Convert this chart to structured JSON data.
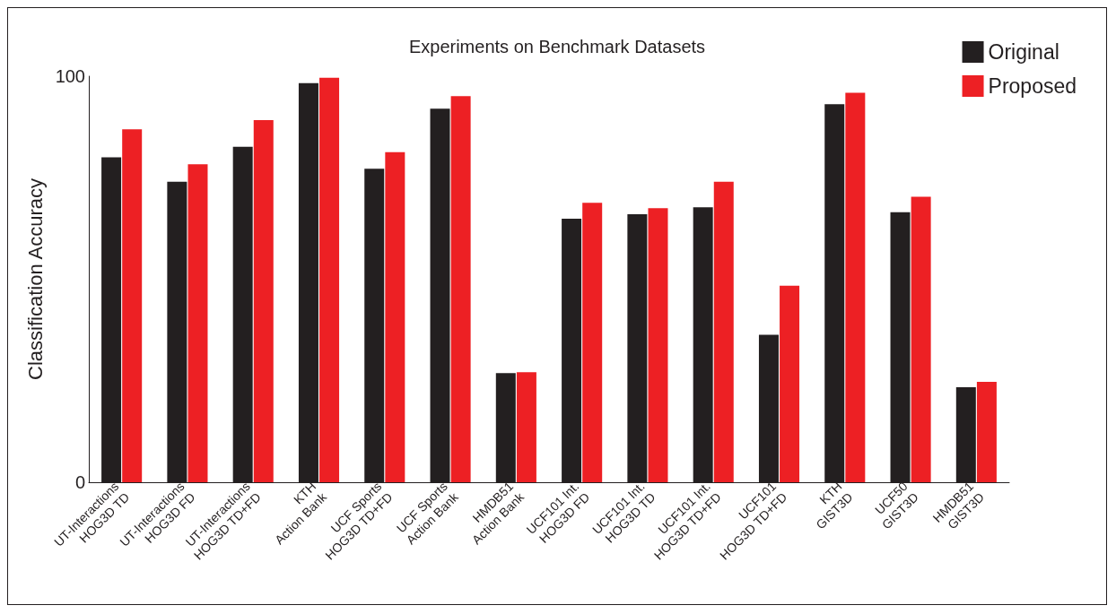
{
  "chart_data": {
    "type": "bar",
    "title": "Experiments on Benchmark Datasets",
    "ylabel": "Classification Accuracy",
    "categories": [
      "UT-Interactions\nHOG3D TD",
      "UT-Interactions\nHOG3D FD",
      "UT-Interactions\nHOG3D TD+FD",
      "KTH\nAction Bank",
      "UCF Sports\nHOG3D TD+FD",
      "UCF Sports\nAction Bank",
      "HMDB51\nAction Bank",
      "UCF101 Int.\nHOG3D FD",
      "UCF101 Int.\nHOG3D TD",
      "UCF101 Int.\nHOG3D TD+FD",
      "UCF101\nHOG3D TD+FD",
      "KTH\nGIST3D",
      "UCF50\nGIST3D",
      "HMDB51\nGIST3D"
    ],
    "series": [
      {
        "name": "Original",
        "color": "#231f20",
        "values": [
          80,
          74,
          82.6,
          98.3,
          77.2,
          92,
          26.9,
          64.9,
          66,
          67.7,
          36.3,
          93.1,
          66.5,
          23.4
        ]
      },
      {
        "name": "Proposed",
        "color": "#ed2024",
        "values": [
          86.9,
          78.3,
          89.2,
          99.6,
          81.3,
          95.1,
          27.1,
          68.8,
          67.5,
          74,
          48.4,
          95.9,
          70.3,
          24.7
        ]
      }
    ],
    "ylim": [
      0,
      100
    ],
    "yticks": [
      0,
      100
    ],
    "grid": false,
    "legend": "top right"
  }
}
